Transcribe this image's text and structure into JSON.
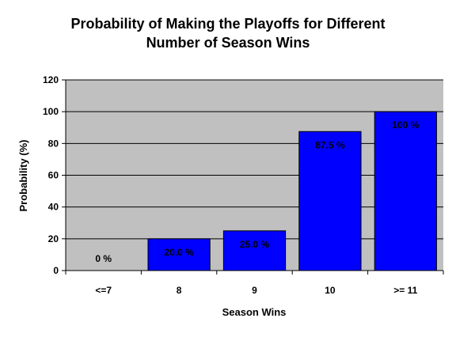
{
  "chart_data": {
    "type": "bar",
    "title_lines": [
      "Probability of Making the Playoffs for Different",
      "Number of Season Wins"
    ],
    "xlabel": "Season Wins",
    "ylabel": "Probability (%)",
    "categories": [
      "<=7",
      "8",
      "9",
      "10",
      ">= 11"
    ],
    "values": [
      0,
      20.0,
      25.0,
      87.5,
      100
    ],
    "data_labels": [
      "0 %",
      "20.0 %",
      "25.0  %",
      "87.5 %",
      "100 %"
    ],
    "ylim": [
      0,
      120
    ],
    "yticks": [
      0,
      20,
      40,
      60,
      80,
      100,
      120
    ],
    "grid": true,
    "legend": "none",
    "colors": {
      "bar": "#0000FF",
      "plot_background": "#C0C0C0",
      "gridline": "#000000",
      "bar_border": "#000000"
    }
  }
}
